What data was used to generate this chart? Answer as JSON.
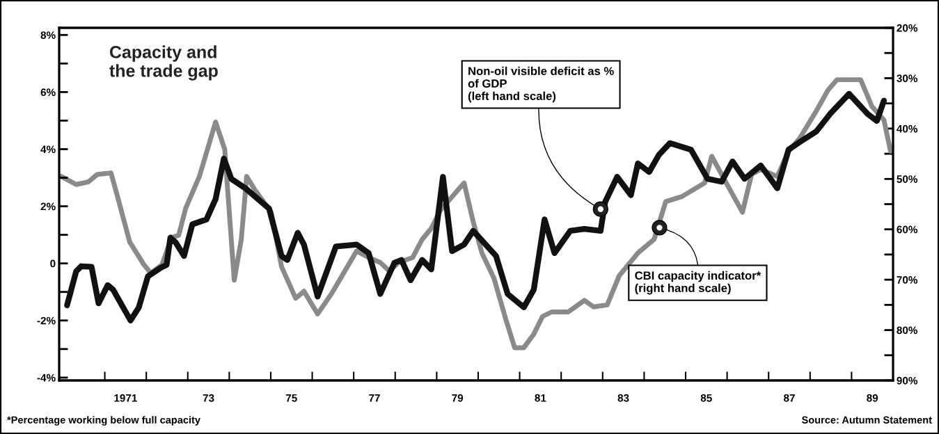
{
  "chart_data": {
    "type": "line",
    "title": "Capacity and\nthe trade gap",
    "xlim": [
      1969.4,
      1989.5
    ],
    "xticks": [
      {
        "value": 1970.5,
        "label": null
      },
      {
        "value": 1971,
        "label": "1971"
      },
      {
        "value": 1971.5,
        "label": null
      },
      {
        "value": 1972.5,
        "label": null
      },
      {
        "value": 1973,
        "label": "73"
      },
      {
        "value": 1973.5,
        "label": null
      },
      {
        "value": 1974.5,
        "label": null
      },
      {
        "value": 1975,
        "label": "75"
      },
      {
        "value": 1975.5,
        "label": null
      },
      {
        "value": 1976.5,
        "label": null
      },
      {
        "value": 1977,
        "label": "77"
      },
      {
        "value": 1977.5,
        "label": null
      },
      {
        "value": 1978.5,
        "label": null
      },
      {
        "value": 1979,
        "label": "79"
      },
      {
        "value": 1979.5,
        "label": null
      },
      {
        "value": 1980.5,
        "label": null
      },
      {
        "value": 1981,
        "label": "81"
      },
      {
        "value": 1981.5,
        "label": null
      },
      {
        "value": 1982.5,
        "label": null
      },
      {
        "value": 1983,
        "label": "83"
      },
      {
        "value": 1983.5,
        "label": null
      },
      {
        "value": 1984.5,
        "label": null
      },
      {
        "value": 1985,
        "label": "85"
      },
      {
        "value": 1985.5,
        "label": null
      },
      {
        "value": 1986.5,
        "label": null
      },
      {
        "value": 1987,
        "label": "87"
      },
      {
        "value": 1987.5,
        "label": null
      },
      {
        "value": 1988.5,
        "label": null
      },
      {
        "value": 1989,
        "label": "89"
      }
    ],
    "ylim": [
      -4.1,
      8.25
    ],
    "yticks": [
      {
        "value": -4,
        "label": "-4%"
      },
      {
        "value": -3,
        "label": null
      },
      {
        "value": -2,
        "label": "-2%"
      },
      {
        "value": -1,
        "label": null
      },
      0,
      {
        "value": 1,
        "label": null
      },
      {
        "value": 2,
        "label": "2%"
      },
      {
        "value": 3,
        "label": null
      },
      {
        "value": 4,
        "label": "4%"
      },
      {
        "value": 5,
        "label": null
      },
      {
        "value": 6,
        "label": "6%"
      },
      {
        "value": 7,
        "label": null
      },
      {
        "value": 8,
        "label": "8%"
      }
    ],
    "y2lim": [
      90,
      20
    ],
    "y2ticks": [
      {
        "value": 20,
        "label": "20%"
      },
      {
        "value": 25,
        "label": null
      },
      {
        "value": 30,
        "label": "30%"
      },
      {
        "value": 35,
        "label": null
      },
      {
        "value": 40,
        "label": "40%"
      },
      {
        "value": 45,
        "label": null
      },
      {
        "value": 50,
        "label": "50%"
      },
      {
        "value": 55,
        "label": null
      },
      {
        "value": 60,
        "label": "60%"
      },
      {
        "value": 65,
        "label": null
      },
      {
        "value": 70,
        "label": "70%"
      },
      {
        "value": 75,
        "label": null
      },
      {
        "value": 80,
        "label": "80%"
      },
      {
        "value": 85,
        "label": null
      },
      {
        "value": 90,
        "label": "90%"
      }
    ],
    "grid": false,
    "legend": false,
    "marker": "none",
    "line_style": "solid",
    "series": [
      {
        "color": "#111111",
        "x": [
          1969.59,
          1969.81,
          1969.93,
          1970.18,
          1970.35,
          1970.57,
          1970.7,
          1971.12,
          1971.32,
          1971.54,
          1971.83,
          1971.99,
          1972.08,
          1972.21,
          1972.41,
          1972.61,
          1972.95,
          1973.17,
          1973.37,
          1973.55,
          1973.89,
          1974.46,
          1974.76,
          1974.9,
          1975.15,
          1975.3,
          1975.63,
          1976.07,
          1976.57,
          1976.86,
          1977.14,
          1977.48,
          1977.65,
          1977.87,
          1978.15,
          1978.37,
          1978.65,
          1978.87,
          1979.16,
          1979.38,
          1979.93,
          1980.21,
          1980.6,
          1980.84,
          1981.1,
          1981.34,
          1981.72,
          1982.06,
          1982.45,
          1982.56,
          1982.85,
          1983.18,
          1983.35,
          1983.62,
          1983.86,
          1984.12,
          1984.63,
          1985.03,
          1985.37,
          1985.63,
          1985.92,
          1986.31,
          1986.71,
          1986.98,
          1987.21,
          1987.65,
          1987.98,
          1988.44,
          1988.89,
          1989.11,
          1989.28
        ],
        "values": [
          -1.47,
          -0.28,
          -0.1,
          -0.12,
          -1.4,
          -0.76,
          -0.92,
          -2.0,
          -1.54,
          -0.45,
          -0.17,
          -0.05,
          0.9,
          0.73,
          0.26,
          1.37,
          1.54,
          2.25,
          3.67,
          2.96,
          2.63,
          1.92,
          0.26,
          0.12,
          1.07,
          0.66,
          -1.16,
          0.59,
          0.66,
          0.36,
          -1.07,
          0.02,
          0.12,
          -0.59,
          0.12,
          -0.21,
          3.03,
          0.43,
          0.66,
          1.14,
          0.26,
          -1.07,
          -1.54,
          -0.92,
          1.54,
          0.36,
          1.14,
          1.21,
          1.14,
          2.15,
          3.03,
          2.39,
          3.5,
          3.2,
          3.81,
          4.21,
          3.98,
          2.96,
          2.86,
          3.57,
          2.96,
          3.43,
          2.63,
          3.98,
          4.21,
          4.62,
          5.23,
          5.94,
          5.23,
          4.99,
          5.7
        ]
      },
      {
        "color": "#8a8a8a",
        "axis": "y2",
        "x": [
          1969.45,
          1969.81,
          1970.1,
          1970.32,
          1970.65,
          1970.82,
          1971.1,
          1971.44,
          1971.61,
          1971.88,
          1972.11,
          1972.28,
          1972.45,
          1972.78,
          1973.17,
          1973.39,
          1973.62,
          1973.79,
          1973.92,
          1974.12,
          1974.51,
          1974.76,
          1975.1,
          1975.3,
          1975.63,
          1975.97,
          1976.57,
          1976.86,
          1977.14,
          1977.36,
          1977.58,
          1977.92,
          1978.15,
          1978.37,
          1978.59,
          1979.16,
          1979.38,
          1979.59,
          1979.88,
          1980.16,
          1980.38,
          1980.6,
          1980.84,
          1981.05,
          1981.27,
          1981.67,
          1982.06,
          1982.28,
          1982.61,
          1982.9,
          1983.35,
          1983.74,
          1984.02,
          1984.41,
          1984.96,
          1985.13,
          1985.42,
          1985.87,
          1986.09,
          1986.31,
          1986.71,
          1986.98,
          1987.26,
          1987.65,
          1987.93,
          1988.15,
          1988.72,
          1988.99,
          1989.28,
          1989.44
        ],
        "values": [
          49.5,
          51.1,
          50.6,
          49.1,
          48.8,
          53.9,
          62.5,
          67.0,
          68.7,
          67.0,
          61.6,
          61.2,
          55.8,
          49.5,
          38.7,
          44.1,
          70.1,
          62.0,
          49.5,
          52.2,
          56.6,
          67.4,
          73.7,
          72.3,
          76.8,
          72.7,
          64.3,
          65.6,
          66.6,
          68.3,
          66.6,
          65.6,
          62.0,
          59.8,
          56.2,
          50.8,
          58.5,
          64.7,
          69.7,
          77.7,
          83.5,
          83.5,
          80.8,
          77.3,
          76.4,
          76.4,
          74.1,
          75.4,
          75.0,
          69.2,
          64.7,
          62.0,
          54.5,
          53.5,
          50.8,
          45.5,
          49.9,
          56.6,
          49.1,
          48.1,
          49.5,
          44.5,
          41.8,
          36.5,
          32.4,
          30.3,
          30.3,
          35.6,
          38.3,
          44.5
        ]
      }
    ],
    "annotations": [
      {
        "text": "Non-oil visible deficit as %\nof GDP\n(left hand scale)",
        "x": 1982.45,
        "y": 1.9
      },
      {
        "text": "CBI capacity indicator*\n(right hand scale)",
        "x": 1983.87,
        "y": 1.25
      },
      "*Percentage working below full capacity",
      "Source: Autumn Statement"
    ]
  }
}
